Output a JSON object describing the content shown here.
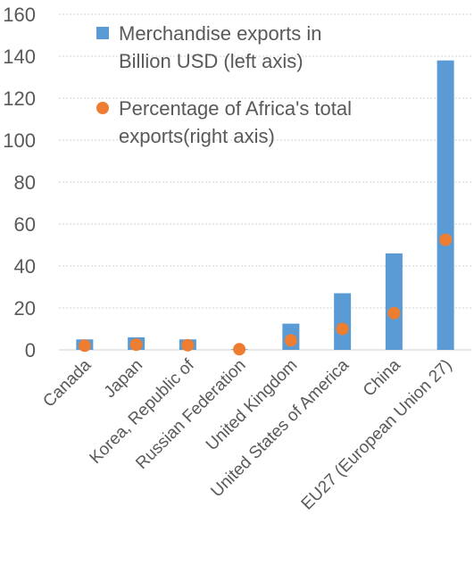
{
  "chart_data": {
    "type": "bar",
    "categories": [
      "Canada",
      "Japan",
      "Korea, Republic of",
      "Russian Federation",
      "United Kingdom",
      "United States of America",
      "China",
      "EU27 (European Union 27)"
    ],
    "series": [
      {
        "name": "Merchandise exports  in Billion USD (left axis)",
        "name_lines": [
          "Merchandise exports  in",
          "Billion USD (left axis)"
        ],
        "type": "bar",
        "axis": "left",
        "color": "#5B9BD5",
        "values": [
          5,
          6,
          5,
          0.3,
          12.5,
          27,
          46,
          138
        ]
      },
      {
        "name": "Percentage of Africa's total exports(right axis)",
        "name_lines": [
          "Percentage of Africa's total",
          "exports(right axis)"
        ],
        "type": "scatter",
        "axis": "right",
        "color": "#ED7D31",
        "values": [
          2,
          2.5,
          2.2,
          0.3,
          4.5,
          10,
          17.5,
          52.5
        ]
      }
    ],
    "yticks": [
      "0",
      "20",
      "40",
      "60",
      "80",
      "100",
      "120",
      "140",
      "160"
    ],
    "ylim": [
      0,
      160
    ],
    "grid": "horizontal-dotted",
    "legend": "top-left, inside plot"
  }
}
